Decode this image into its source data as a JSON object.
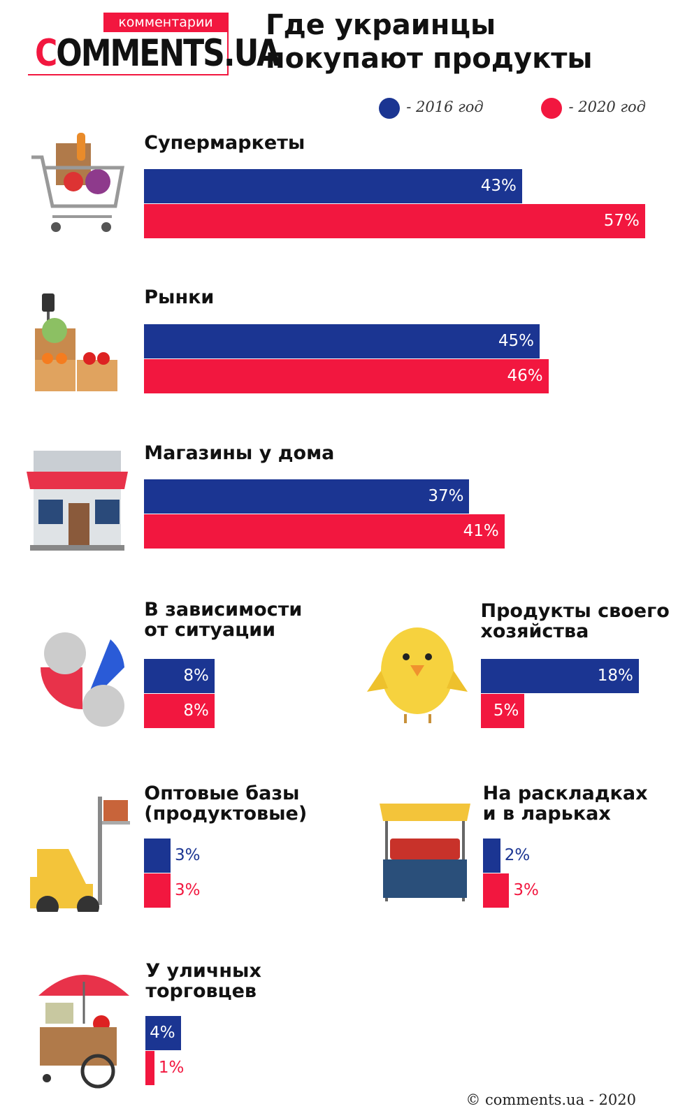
{
  "header": {
    "logo_tagline": "комментарии",
    "logo": "COMMENTS.UA"
  },
  "chart_data": {
    "type": "bar",
    "title": "Где украинцы\nпокупают продукты",
    "categories": [
      "Супермаркеты",
      "Рынки",
      "Магазины у дома",
      "В зависимости\nот ситуации",
      "Продукты своего\nхозяйства",
      "Оптовые базы\n(продуктовые)",
      "На раскладках\nи в ларьках",
      "У уличных\nторговцев"
    ],
    "series": [
      {
        "name": "- 2016 год",
        "color": "#1b3592",
        "values": [
          43,
          45,
          37,
          8,
          18,
          3,
          2,
          4
        ],
        "value_labels": [
          "43%",
          "45%",
          "37%",
          "8%",
          "18%",
          "3%",
          "2%",
          "4%"
        ]
      },
      {
        "name": "- 2020 год",
        "color": "#f2173f",
        "values": [
          57,
          46,
          41,
          8,
          5,
          3,
          3,
          1
        ],
        "value_labels": [
          "57%",
          "46%",
          "41%",
          "8%",
          "5%",
          "3%",
          "3%",
          "1%"
        ]
      }
    ]
  },
  "footer": "© comments.ua - 2020"
}
